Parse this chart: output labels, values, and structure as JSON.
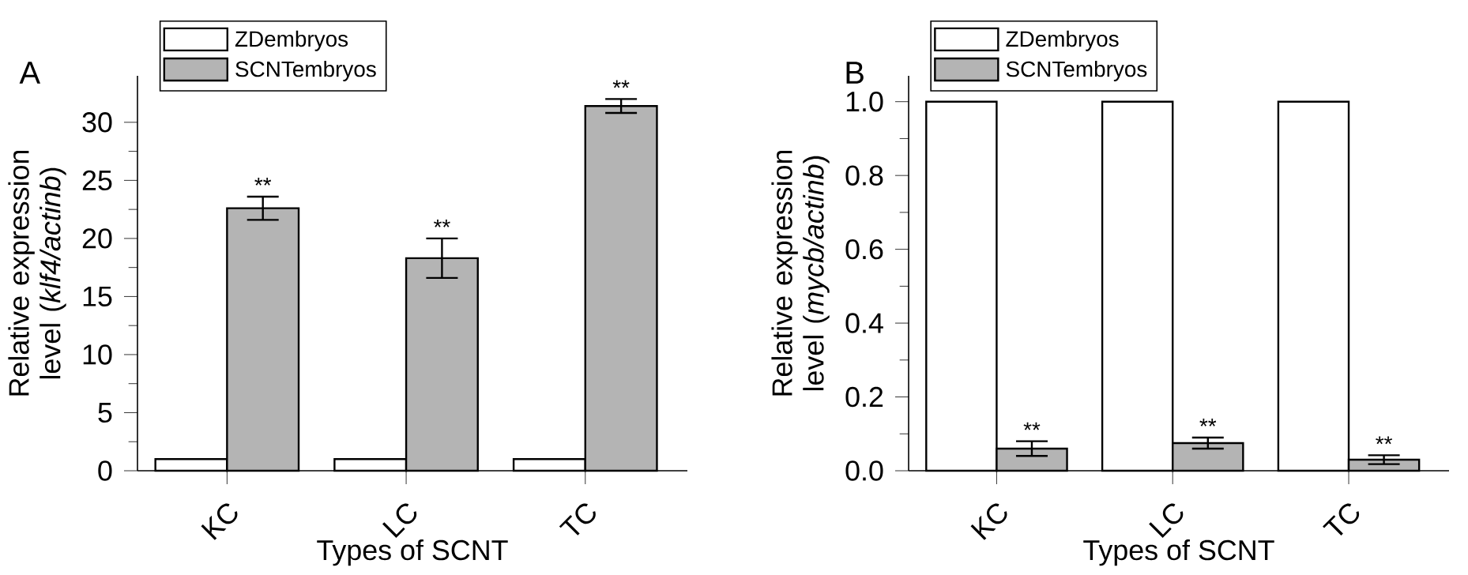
{
  "chart_data": [
    {
      "type": "bar",
      "title": "A",
      "xlabel": "Types of SCNT",
      "ylabel": "Relative expression level (*klf4/actinb*)",
      "categories": [
        "KC",
        "LC",
        "TC"
      ],
      "ylim": [
        0,
        34
      ],
      "yticks": [
        0,
        5,
        10,
        15,
        20,
        25,
        30
      ],
      "grid": false,
      "legend": "top left",
      "series": [
        {
          "name": "ZDembryos",
          "color": "#ffffff",
          "values": [
            1,
            1,
            1
          ]
        },
        {
          "name": "SCNTembryos",
          "color": "#b4b4b4",
          "values": [
            22.6,
            18.3,
            31.4
          ],
          "errors": [
            1.0,
            1.7,
            0.6
          ]
        }
      ],
      "annotations": [
        "**",
        "**",
        "**"
      ]
    },
    {
      "type": "bar",
      "title": "B",
      "xlabel": "Types of SCNT",
      "ylabel": "Relative expression level (*mycb/actinb*)",
      "categories": [
        "KC",
        "LC",
        "TC"
      ],
      "ylim": [
        0,
        1.07
      ],
      "yticks": [
        {
          "value": 0,
          "label": "0.0"
        },
        0.2,
        0.4,
        0.6,
        0.8,
        {
          "value": 1,
          "label": "1.0"
        }
      ],
      "grid": false,
      "legend": "top left",
      "series": [
        {
          "name": "ZDembryos",
          "color": "#ffffff",
          "values": [
            1,
            1,
            1
          ]
        },
        {
          "name": "SCNTembryos",
          "color": "#b4b4b4",
          "values": [
            0.06,
            0.075,
            0.03
          ],
          "errors": [
            0.02,
            0.015,
            0.012
          ]
        }
      ],
      "annotations": [
        "**",
        "**",
        "**"
      ]
    }
  ]
}
